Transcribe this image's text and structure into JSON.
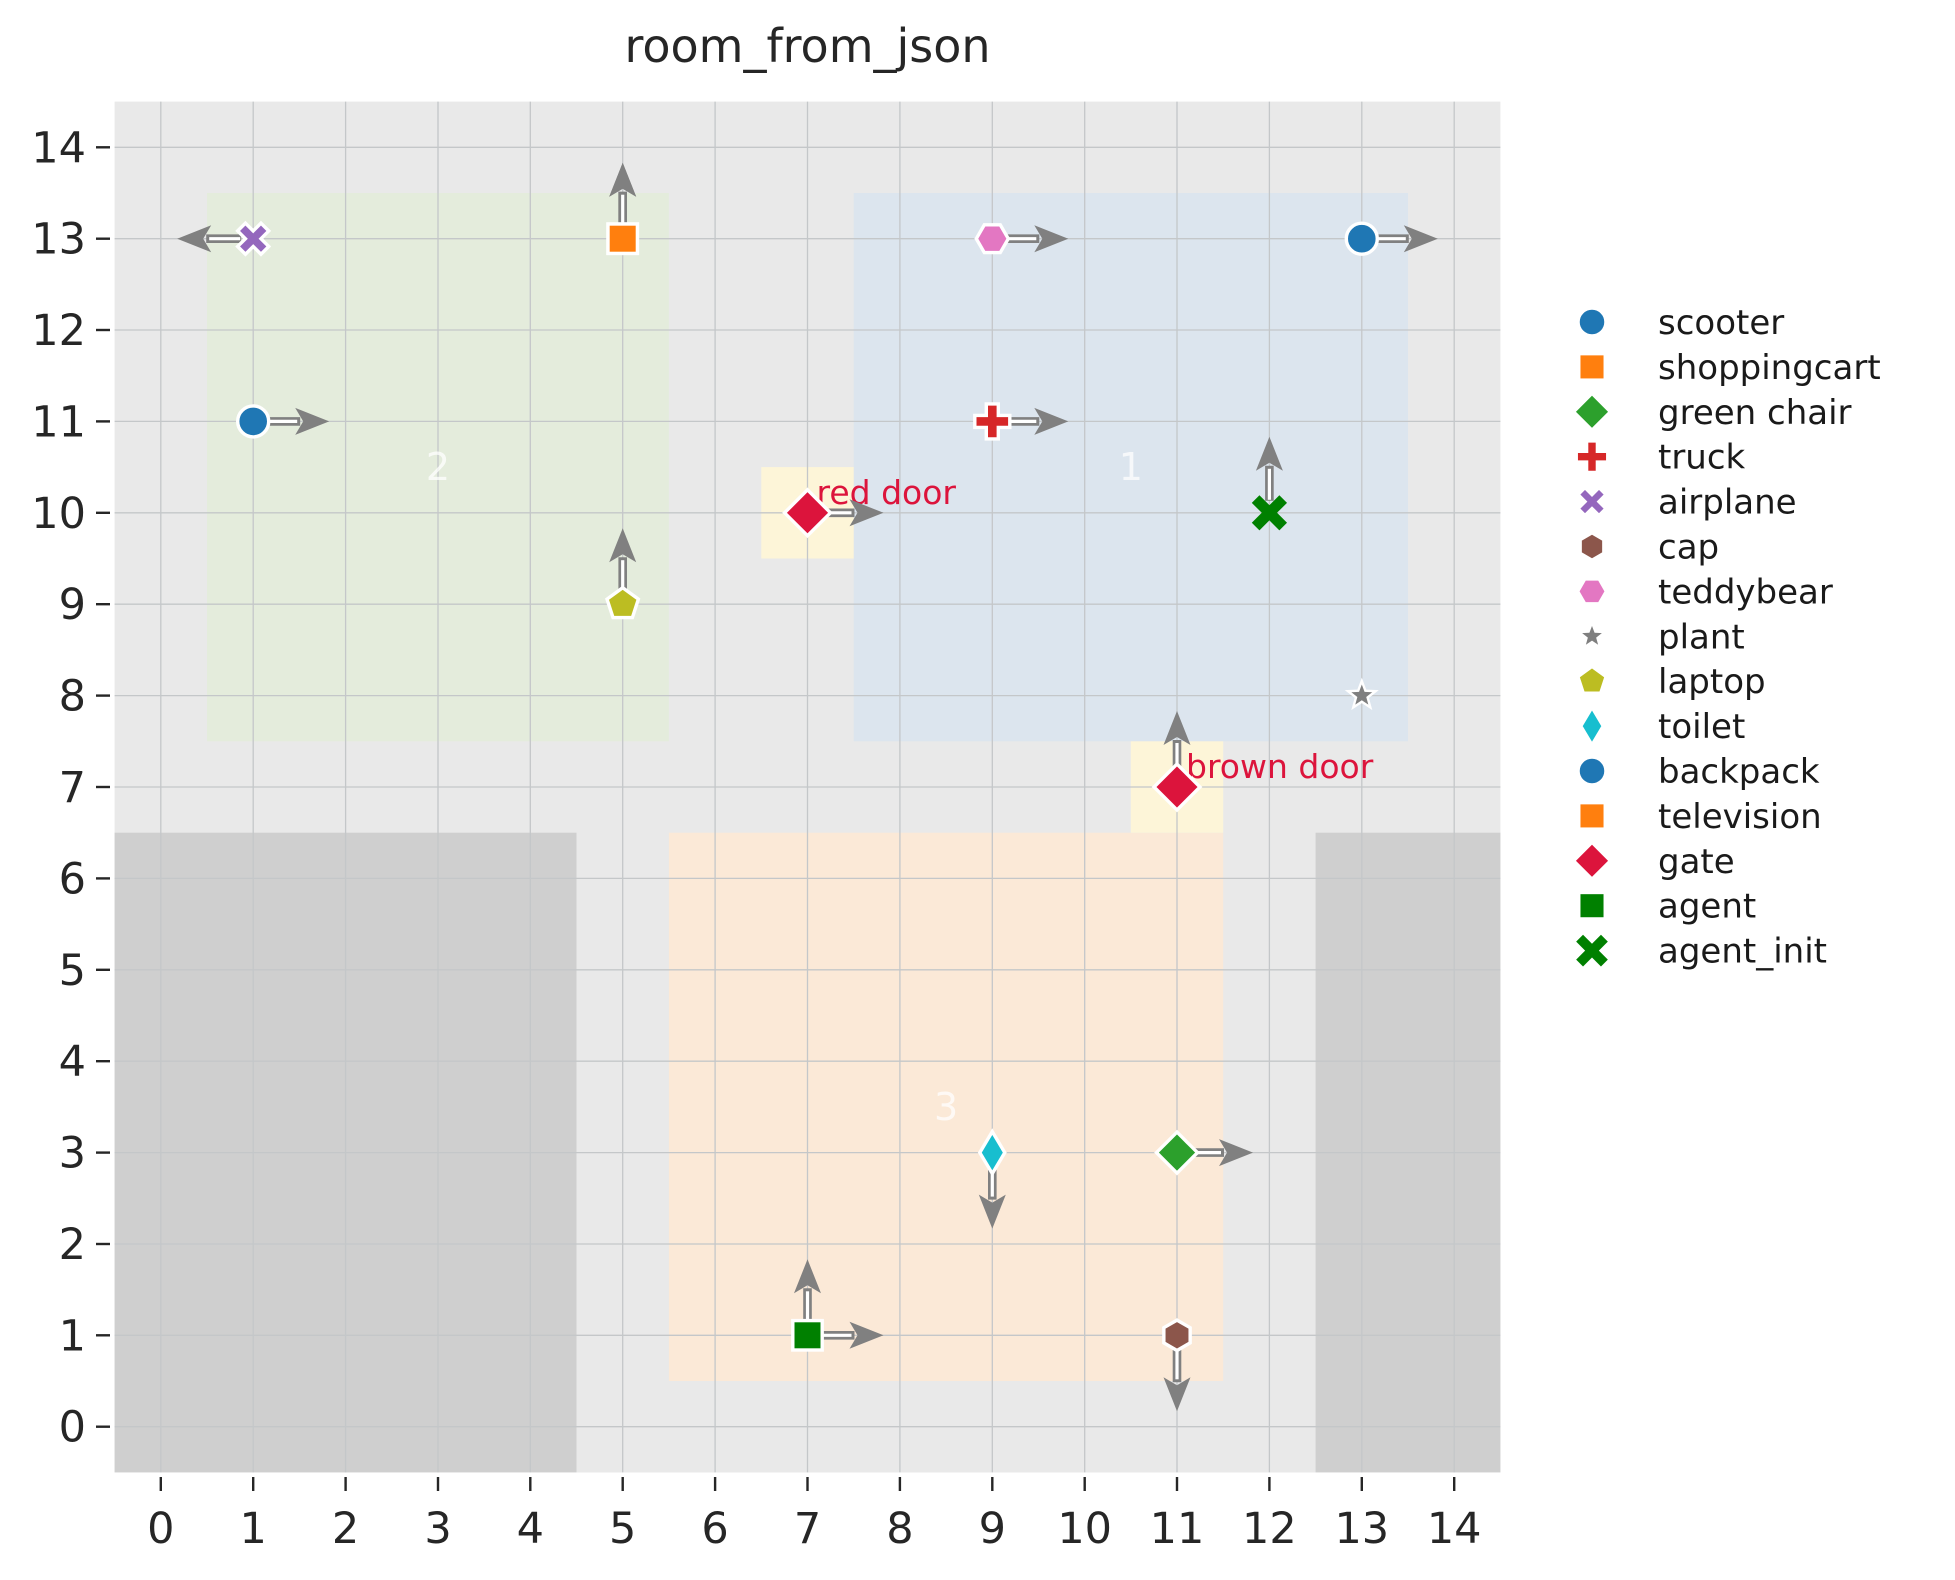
{
  "chart_data": {
    "type": "scatter",
    "title": "room_from_json",
    "xlabel": "",
    "ylabel": "",
    "xlim": [
      -0.55,
      14.55
    ],
    "ylim": [
      -0.55,
      14.55
    ],
    "xticks": [
      0,
      1,
      2,
      3,
      4,
      5,
      6,
      7,
      8,
      9,
      10,
      11,
      12,
      13,
      14
    ],
    "yticks": [
      0,
      1,
      2,
      3,
      4,
      5,
      6,
      7,
      8,
      9,
      10,
      11,
      12,
      13,
      14
    ],
    "grid": true,
    "legend_position": "right-outside",
    "colors": {
      "floor": "#e9e9e9",
      "obstacle": "#cfcfcf",
      "room1": "#dce5ee",
      "room2": "#e4ecdc",
      "room3": "#fbe9d7",
      "door_cell": "#fdf5d8",
      "gridline": "#c4c7c9",
      "arrow": "#808080",
      "tick_text": "#262626",
      "door_text": "#dc143c",
      "room_label_text": "#ffffff"
    },
    "regions": [
      {
        "name": "floor",
        "x0": -0.5,
        "y0": -0.5,
        "x1": 14.5,
        "y1": 14.5,
        "color": "#e9e9e9",
        "label": ""
      },
      {
        "name": "obstacle-left",
        "x0": -0.5,
        "y0": -0.5,
        "x1": 4.5,
        "y1": 6.5,
        "color": "#cfcfcf",
        "label": ""
      },
      {
        "name": "obstacle-right",
        "x0": 12.5,
        "y0": -0.5,
        "x1": 14.5,
        "y1": 6.5,
        "color": "#cfcfcf",
        "label": ""
      },
      {
        "name": "room-2",
        "x0": 0.5,
        "y0": 7.5,
        "x1": 5.5,
        "y1": 13.5,
        "color": "#e4ecdc",
        "label": "2",
        "label_x": 3,
        "label_y": 10.5
      },
      {
        "name": "room-1",
        "x0": 7.5,
        "y0": 7.5,
        "x1": 13.5,
        "y1": 13.5,
        "color": "#dce5ee",
        "label": "1",
        "label_x": 10.5,
        "label_y": 10.5
      },
      {
        "name": "room-3",
        "x0": 5.5,
        "y0": 0.5,
        "x1": 11.5,
        "y1": 6.5,
        "color": "#fbe9d7",
        "label": "3",
        "label_x": 8.5,
        "label_y": 3.5
      },
      {
        "name": "door-cell-red-door",
        "x0": 6.5,
        "y0": 9.5,
        "x1": 7.5,
        "y1": 10.5,
        "color": "#fdf5d8",
        "label": ""
      },
      {
        "name": "door-cell-brown-door",
        "x0": 10.5,
        "y0": 6.5,
        "x1": 11.5,
        "y1": 7.5,
        "color": "#fdf5d8",
        "label": ""
      }
    ],
    "door_labels": [
      {
        "text": "red door",
        "x": 7,
        "y": 10,
        "color": "#dc143c"
      },
      {
        "text": "brown door",
        "x": 11,
        "y": 7,
        "color": "#dc143c"
      }
    ],
    "objects": [
      {
        "name": "scooter",
        "marker": "circle",
        "color": "#1f77b4",
        "x": 1,
        "y": 11,
        "arrows": [
          "right"
        ]
      },
      {
        "name": "airplane",
        "marker": "x",
        "color": "#9467bd",
        "x": 1,
        "y": 13,
        "arrows": [
          "left"
        ]
      },
      {
        "name": "shoppingcart",
        "marker": "square",
        "color": "#ff7f0e",
        "x": 5,
        "y": 13,
        "arrows": [
          "up"
        ]
      },
      {
        "name": "television",
        "marker": "square",
        "color": "#ff7f0e",
        "x": 5,
        "y": 13,
        "arrows": [
          "up"
        ]
      },
      {
        "name": "laptop",
        "marker": "pentagon",
        "color": "#bcbd22",
        "x": 5,
        "y": 9,
        "arrows": [
          "up"
        ]
      },
      {
        "name": "teddybear",
        "marker": "hexagon-flat",
        "color": "#e377c2",
        "x": 9,
        "y": 13,
        "arrows": [
          "right"
        ]
      },
      {
        "name": "truck",
        "marker": "plus",
        "color": "#d62728",
        "x": 9,
        "y": 11,
        "arrows": [
          "right"
        ]
      },
      {
        "name": "backpack",
        "marker": "circle",
        "color": "#1f77b4",
        "x": 13,
        "y": 13,
        "arrows": [
          "right"
        ]
      },
      {
        "name": "plant",
        "marker": "star",
        "color": "#7f7f7f",
        "x": 13,
        "y": 8,
        "arrows": []
      },
      {
        "name": "agent_init",
        "marker": "x-lines",
        "color": "#008000",
        "x": 12,
        "y": 10,
        "arrows": [
          "up"
        ]
      },
      {
        "name": "gate red door",
        "marker": "diamond",
        "color": "#dc143c",
        "x": 7,
        "y": 10,
        "arrows": [
          "right"
        ],
        "size": 1.12
      },
      {
        "name": "gate brown door",
        "marker": "diamond",
        "color": "#dc143c",
        "x": 11,
        "y": 7,
        "arrows": [
          "up"
        ],
        "size": 1.12
      },
      {
        "name": "toilet",
        "marker": "thin-diamond",
        "color": "#17becf",
        "x": 9,
        "y": 3,
        "arrows": [
          "down"
        ]
      },
      {
        "name": "green chair",
        "marker": "diamond",
        "color": "#2ca02c",
        "x": 11,
        "y": 3,
        "arrows": [
          "right"
        ]
      },
      {
        "name": "cap",
        "marker": "hexagon-pointy",
        "color": "#8c564b",
        "x": 11,
        "y": 1,
        "arrows": [
          "down"
        ]
      },
      {
        "name": "agent",
        "marker": "square",
        "color": "#008000",
        "x": 7,
        "y": 1,
        "arrows": [
          "up",
          "right"
        ]
      }
    ],
    "legend": [
      {
        "label": "scooter",
        "marker": "circle",
        "color": "#1f77b4"
      },
      {
        "label": "shoppingcart",
        "marker": "square",
        "color": "#ff7f0e"
      },
      {
        "label": "green chair",
        "marker": "diamond",
        "color": "#2ca02c"
      },
      {
        "label": "truck",
        "marker": "plus",
        "color": "#d62728"
      },
      {
        "label": "airplane",
        "marker": "x",
        "color": "#9467bd"
      },
      {
        "label": "cap",
        "marker": "hexagon-pointy",
        "color": "#8c564b"
      },
      {
        "label": "teddybear",
        "marker": "hexagon-flat",
        "color": "#e377c2"
      },
      {
        "label": "plant",
        "marker": "star",
        "color": "#7f7f7f"
      },
      {
        "label": "laptop",
        "marker": "pentagon",
        "color": "#bcbd22"
      },
      {
        "label": "toilet",
        "marker": "thin-diamond",
        "color": "#17becf"
      },
      {
        "label": "backpack",
        "marker": "circle",
        "color": "#1f77b4"
      },
      {
        "label": "television",
        "marker": "square",
        "color": "#ff7f0e"
      },
      {
        "label": "gate",
        "marker": "diamond",
        "color": "#dc143c"
      },
      {
        "label": "agent",
        "marker": "square",
        "color": "#008000"
      },
      {
        "label": "agent_init",
        "marker": "x-lines",
        "color": "#008000"
      }
    ]
  }
}
